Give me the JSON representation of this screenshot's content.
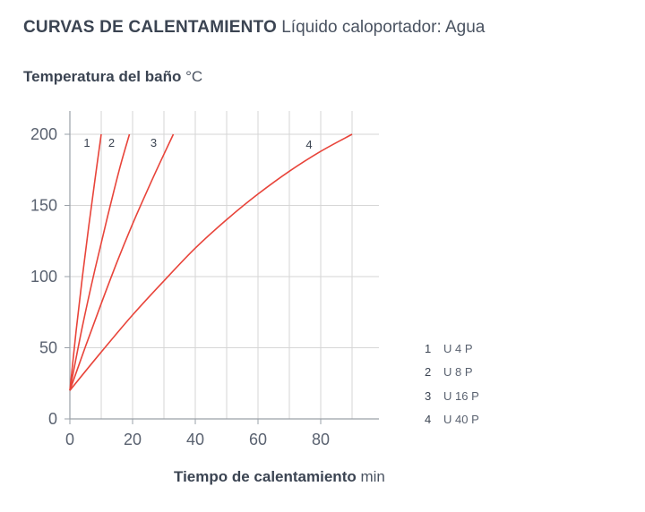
{
  "title": {
    "bold": "CURVAS DE CALENTAMIENTO",
    "light": "Líquido caloportador: Agua"
  },
  "y_axis": {
    "label": "Temperatura del baño",
    "unit": "°C"
  },
  "x_axis": {
    "label": "Tiempo de calentamiento",
    "unit": "min"
  },
  "colors": {
    "curve": "#e8443a",
    "grid": "#d6d6d6",
    "axis": "#9aa0a8",
    "text": "#3b4452"
  },
  "legend": [
    {
      "num": "1",
      "label": "U 4 P"
    },
    {
      "num": "2",
      "label": "U 8 P"
    },
    {
      "num": "3",
      "label": "U 16 P"
    },
    {
      "num": "4",
      "label": "U 40 P"
    }
  ],
  "chart_data": {
    "type": "line",
    "title": "CURVAS DE CALENTAMIENTO Líquido caloportador: Agua",
    "xlabel": "Tiempo de calentamiento min",
    "ylabel": "Temperatura del baño °C",
    "xlim": [
      0,
      100
    ],
    "ylim": [
      0,
      200
    ],
    "xticks": [
      0,
      20,
      40,
      60,
      80
    ],
    "yticks": [
      0,
      50,
      100,
      150,
      200
    ],
    "grid": true,
    "series": [
      {
        "name": "1",
        "x": [
          0,
          2,
          4,
          6,
          8,
          10
        ],
        "y": [
          20,
          62,
          100,
          135,
          168,
          200
        ]
      },
      {
        "name": "2",
        "x": [
          0,
          4,
          8,
          12,
          16,
          19
        ],
        "y": [
          20,
          65,
          105,
          142,
          177,
          200
        ]
      },
      {
        "name": "3",
        "x": [
          0,
          5,
          10,
          15,
          20,
          25,
          30,
          33
        ],
        "y": [
          20,
          51,
          81,
          110,
          137,
          162,
          186,
          200
        ]
      },
      {
        "name": "4",
        "x": [
          0,
          10,
          20,
          30,
          40,
          50,
          60,
          70,
          80,
          90
        ],
        "y": [
          20,
          47,
          73,
          97,
          120,
          140,
          158,
          174,
          188,
          200
        ]
      }
    ]
  }
}
